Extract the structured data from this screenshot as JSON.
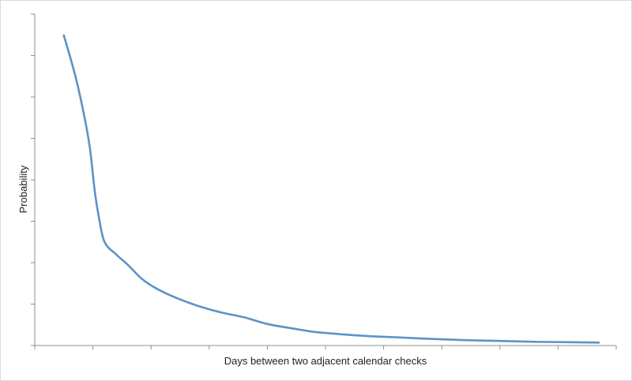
{
  "chart_data": {
    "type": "line",
    "title": "",
    "xlabel": "Days between two adjacent calendar checks",
    "ylabel": "Probability",
    "grid": false,
    "legend": "none",
    "line_color": "#5b93c7",
    "axis_color": "#8c8c8c",
    "x_tick_count": 11,
    "y_tick_count": 9,
    "x_range": [
      0,
      10
    ],
    "y_range": [
      0,
      8
    ],
    "series": [
      {
        "points": [
          [
            0.5,
            7.49
          ],
          [
            0.7,
            6.5
          ],
          [
            0.85,
            5.55
          ],
          [
            0.95,
            4.75
          ],
          [
            1.03,
            3.75
          ],
          [
            1.1,
            3.12
          ],
          [
            1.2,
            2.5
          ],
          [
            1.4,
            2.2
          ],
          [
            1.6,
            1.95
          ],
          [
            1.85,
            1.6
          ],
          [
            2.1,
            1.37
          ],
          [
            2.4,
            1.17
          ],
          [
            2.8,
            0.96
          ],
          [
            3.2,
            0.8
          ],
          [
            3.6,
            0.68
          ],
          [
            4.0,
            0.52
          ],
          [
            4.4,
            0.42
          ],
          [
            4.8,
            0.33
          ],
          [
            5.2,
            0.28
          ],
          [
            5.7,
            0.23
          ],
          [
            6.2,
            0.2
          ],
          [
            6.8,
            0.16
          ],
          [
            7.4,
            0.13
          ],
          [
            8.0,
            0.11
          ],
          [
            8.6,
            0.09
          ],
          [
            9.2,
            0.08
          ],
          [
            9.7,
            0.07
          ]
        ]
      }
    ]
  }
}
